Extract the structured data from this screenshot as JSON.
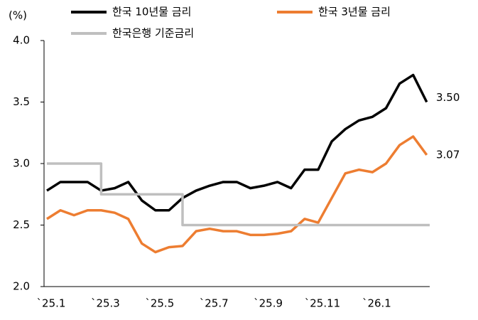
{
  "chart_data": {
    "type": "line",
    "y_label": "(%)",
    "categories": [
      "`25.1",
      null,
      null,
      null,
      "`25.3",
      null,
      null,
      null,
      "`25.5",
      null,
      null,
      null,
      "`25.7",
      null,
      null,
      null,
      "`25.9",
      null,
      null,
      null,
      "`25.11",
      null,
      null,
      null,
      "`26.1",
      null,
      null,
      null,
      null
    ],
    "series": [
      {
        "name": "한국 10년물 금리",
        "color": "#000000",
        "values": [
          2.78,
          2.85,
          2.85,
          2.85,
          2.78,
          2.8,
          2.85,
          2.7,
          2.62,
          2.62,
          2.72,
          2.78,
          2.82,
          2.85,
          2.85,
          2.8,
          2.82,
          2.85,
          2.8,
          2.95,
          2.95,
          3.18,
          3.28,
          3.35,
          3.38,
          3.45,
          3.65,
          3.72,
          3.5
        ],
        "end_label": "3.50"
      },
      {
        "name": "한국 3년물 금리",
        "color": "#ed7d31",
        "values": [
          2.55,
          2.62,
          2.58,
          2.62,
          2.62,
          2.6,
          2.55,
          2.35,
          2.28,
          2.32,
          2.33,
          2.45,
          2.47,
          2.45,
          2.45,
          2.42,
          2.42,
          2.43,
          2.45,
          2.55,
          2.52,
          2.72,
          2.92,
          2.95,
          2.93,
          3.0,
          3.15,
          3.22,
          3.07
        ],
        "end_label": "3.07"
      },
      {
        "name": "한국은행 기준금리",
        "color": "#bfbfbf",
        "step": "post",
        "values": [
          3.0,
          3.0,
          3.0,
          3.0,
          2.75,
          2.75,
          2.75,
          2.75,
          2.75,
          2.75,
          2.5,
          2.5,
          2.5,
          2.5,
          2.5,
          2.5,
          2.5,
          2.5,
          2.5,
          2.5,
          2.5,
          2.5,
          2.5,
          2.5,
          2.5,
          2.5,
          2.5,
          2.5,
          2.5
        ]
      }
    ],
    "ylim": [
      2.0,
      4.0
    ],
    "yticks": [
      {
        "value": 2,
        "label": "2.0"
      },
      {
        "value": 2.5,
        "label": "2.5"
      },
      {
        "value": 3,
        "label": "3.0"
      },
      {
        "value": 3.5,
        "label": "3.5"
      },
      {
        "value": 4,
        "label": "4.0"
      }
    ],
    "grid": false
  }
}
